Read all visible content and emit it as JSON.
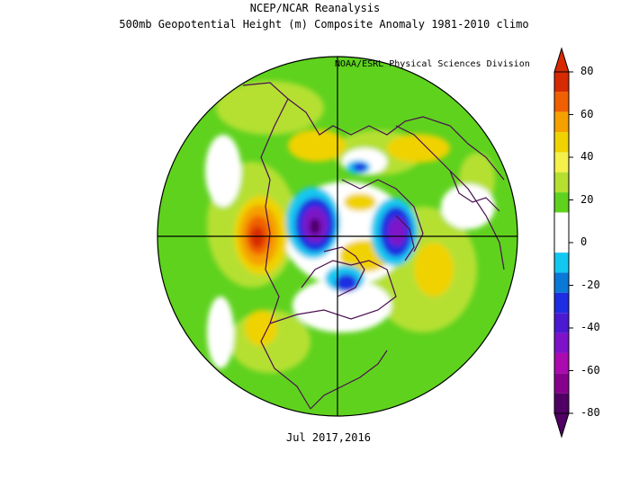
{
  "title_line1": "NCEP/NCAR Reanalysis",
  "title_line2": "500mb Geopotential Height (m) Composite Anomaly 1981-2010 climo",
  "credit": "NOAA/ESRL Physical Sciences Division",
  "date_label": "Jul 2017,2016",
  "colorbar": {
    "ticks": [
      "80",
      "60",
      "40",
      "20",
      "0",
      "-20",
      "-40",
      "-60",
      "-80"
    ],
    "colors": [
      "#d62a00",
      "#f06000",
      "#f5a000",
      "#f0d200",
      "#f5f04a",
      "#b5e030",
      "#5fd21e",
      "#ffffff",
      "#ffffff",
      "#13c8f0",
      "#0a78d7",
      "#1e2de1",
      "#4b19d2",
      "#7d12c8",
      "#aa0aaf",
      "#87008c",
      "#500064"
    ]
  },
  "palette": {
    "green": "#5fd21e",
    "lime": "#b5e030",
    "yellow": "#f0d200",
    "orange": "#f5a000",
    "red": "#d62a00",
    "cyan": "#13c8f0",
    "blue": "#1e2de1",
    "purple": "#7d12c8",
    "coast": "#4a0f4f"
  }
}
